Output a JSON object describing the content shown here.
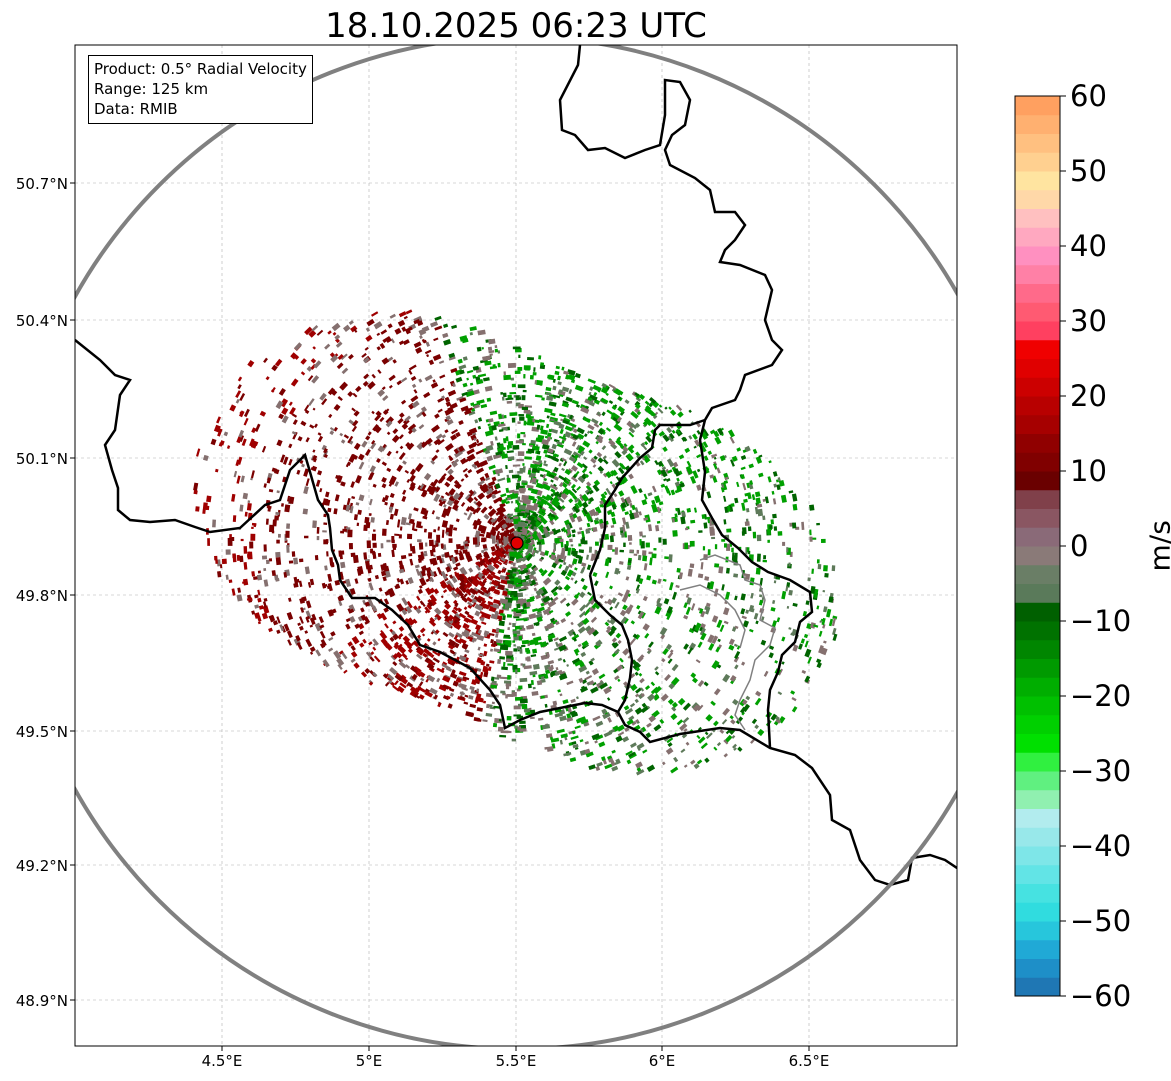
{
  "title": "18.10.2025 06:23 UTC",
  "info": {
    "product": "Product: 0.5° Radial Velocity",
    "range": "Range: 125 km",
    "data": "Data: RMIB"
  },
  "map": {
    "lat_ticks": [
      "50.7°N",
      "50.4°N",
      "50.1°N",
      "49.8°N",
      "49.5°N",
      "49.2°N",
      "48.9°N"
    ],
    "lon_ticks": [
      "4.5°E",
      "5°E",
      "5.5°E",
      "6°E",
      "6.5°E"
    ],
    "radar_site": {
      "lon": 5.5,
      "lat": 49.91
    },
    "range_ring_km": 125,
    "colors": {
      "receding_dark": "#7a0000",
      "receding": "#a00000",
      "near_zero": "#85706f",
      "near_zero_green": "#5e7a5a",
      "approaching": "#00a000",
      "approaching_bright": "#22c022",
      "approaching_dark": "#006400",
      "border": "#000000",
      "ring": "#808080",
      "grid": "#b0b0b0"
    }
  },
  "colorbar": {
    "label": "m/s",
    "ticks": [
      "60",
      "50",
      "40",
      "30",
      "20",
      "10",
      "0",
      "−10",
      "−20",
      "−30",
      "−40",
      "−50",
      "−60"
    ],
    "min": -60,
    "max": 60,
    "stops": [
      "#1f77b4",
      "#1e8fc8",
      "#20a9d6",
      "#27c6dc",
      "#30dcdf",
      "#46e2e1",
      "#62e4e6",
      "#7ee6e8",
      "#98e8ea",
      "#b2ecee",
      "#90f0b0",
      "#60f080",
      "#30f040",
      "#00e000",
      "#00d000",
      "#00c000",
      "#00ae00",
      "#009a00",
      "#008600",
      "#007200",
      "#006000",
      "#5a7a5a",
      "#6a7e66",
      "#8a7a78",
      "#8a6a78",
      "#8a5662",
      "#80404a",
      "#6a0000",
      "#800000",
      "#900000",
      "#a60000",
      "#b80000",
      "#cc0000",
      "#e00000",
      "#f00000",
      "#ff4060",
      "#ff5a72",
      "#ff6a8a",
      "#ff80a6",
      "#ff90c0",
      "#ffa8c0",
      "#ffc0c0",
      "#ffd8a8",
      "#ffe4a0",
      "#ffd090",
      "#ffc080",
      "#ffb070",
      "#ffa060"
    ]
  }
}
